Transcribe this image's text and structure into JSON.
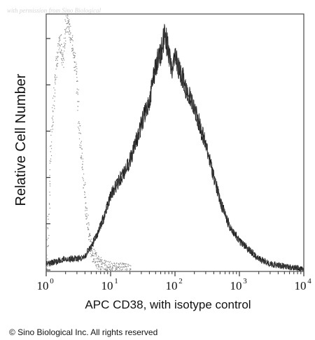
{
  "watermark": "with permission from Sino Biological",
  "copyright": "© Sino Biological Inc. All rights reserved",
  "chart_data": {
    "type": "area",
    "ylabel": "Relative Cell Number",
    "xlabel": "APC CD38, with isotype control",
    "x_scale": "log",
    "xlim": [
      1,
      10000
    ],
    "ylim": [
      0,
      1
    ],
    "x_ticks": [
      {
        "base": "10",
        "exp": "0"
      },
      {
        "base": "10",
        "exp": "1"
      },
      {
        "base": "10",
        "exp": "2"
      },
      {
        "base": "10",
        "exp": "3"
      },
      {
        "base": "10",
        "exp": "4"
      }
    ],
    "y_tick_count": 6,
    "series": [
      {
        "style": "dotted-light",
        "color": "#8c8c8c",
        "x": [
          1.0,
          1.2,
          1.4,
          1.6,
          1.8,
          2.0,
          2.1,
          2.3,
          2.6,
          2.9,
          3.2,
          3.6,
          4.0,
          4.5,
          5.0,
          6.0,
          7.5,
          10,
          20
        ],
        "y": [
          0.0,
          0.56,
          0.8,
          0.93,
          0.83,
          0.98,
          1.0,
          0.95,
          0.88,
          0.78,
          0.58,
          0.42,
          0.27,
          0.15,
          0.08,
          0.04,
          0.02,
          0.01,
          0.0
        ]
      },
      {
        "style": "dense-dark",
        "color": "#1a1a1a",
        "x": [
          1,
          1.5,
          2,
          3,
          4,
          5,
          6,
          8,
          10,
          15,
          20,
          30,
          40,
          50,
          60,
          70,
          80,
          90,
          100,
          120,
          150,
          200,
          300,
          400,
          500,
          700,
          1000,
          1500,
          2000,
          3000,
          5000,
          10000
        ],
        "y": [
          0.03,
          0.04,
          0.05,
          0.05,
          0.06,
          0.1,
          0.14,
          0.22,
          0.3,
          0.38,
          0.44,
          0.58,
          0.68,
          0.82,
          0.86,
          0.95,
          0.86,
          0.8,
          0.84,
          0.8,
          0.72,
          0.65,
          0.5,
          0.38,
          0.28,
          0.18,
          0.12,
          0.08,
          0.05,
          0.03,
          0.02,
          0.01
        ]
      }
    ]
  }
}
